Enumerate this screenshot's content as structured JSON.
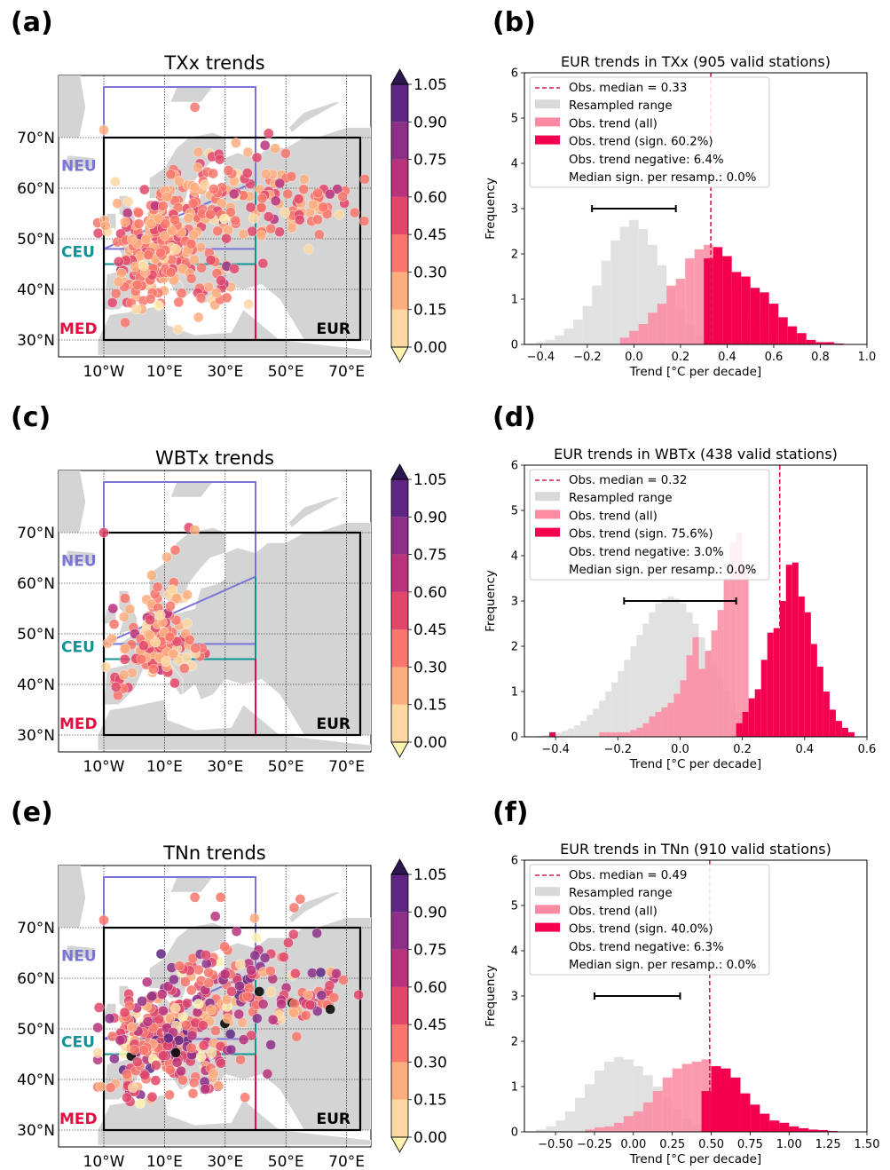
{
  "panel_labels": [
    "(a)",
    "(b)",
    "(c)",
    "(d)",
    "(e)",
    "(f)"
  ],
  "colors": {
    "cmap": [
      "#fcd8a2",
      "#fdae7f",
      "#f8766b",
      "#e2476a",
      "#b8327c",
      "#8c2f86",
      "#5e2682",
      "#2c1750"
    ],
    "neu": "#7b75d6",
    "ceu": "#0e9494",
    "med": "#e30e3f",
    "eur": "#000000",
    "land": "#d4d4d4",
    "resampled": "#d9d9d9",
    "obs_all": "#fb8aa2",
    "obs_sign": "#f5004f",
    "median_line": "#e3174a"
  },
  "chart_data": [
    {
      "type": "scatter-map",
      "title": "TXx trends",
      "region_labels": [
        "NEU",
        "CEU",
        "MED",
        "EUR"
      ],
      "lat_ticks": [
        "30°N",
        "40°N",
        "50°N",
        "60°N",
        "70°N"
      ],
      "lon_ticks": [
        "10°W",
        "10°E",
        "30°E",
        "50°E",
        "70°E"
      ],
      "colorbar_ticks": [
        "0.00",
        "0.15",
        "0.30",
        "0.45",
        "0.60",
        "0.75",
        "0.90",
        "1.05"
      ],
      "colorbar_extend": "both",
      "approx_station_mean_trend": 0.33
    },
    {
      "type": "bar",
      "title": "EUR trends in TXx  (905 valid stations)",
      "xlabel": "Trend [°C per decade]",
      "ylabel": "Frequency",
      "xlim": [
        -0.47,
        1.0
      ],
      "ylim": [
        0,
        6
      ],
      "xticks": [
        "−0.4",
        "−0.2",
        "0.0",
        "0.2",
        "0.4",
        "0.6",
        "0.8",
        "1.0"
      ],
      "yticks": [
        "0",
        "1",
        "2",
        "3",
        "4",
        "5",
        "6"
      ],
      "bin_width": 0.04,
      "legend": [
        "Obs. median = 0.33",
        "Resampled range",
        "Obs. trend (all)",
        "Obs. trend (sign. 60.2%)",
        "Obs. trend negative: 6.4%",
        "Median sign. per resamp.: 0.0%"
      ],
      "median": 0.33,
      "whisker": [
        -0.18,
        0.18,
        3.0
      ],
      "series": [
        {
          "name": "Resampled range",
          "bin_start": -0.46,
          "values": [
            0.02,
            0.05,
            0.1,
            0.2,
            0.35,
            0.55,
            0.85,
            1.3,
            1.85,
            2.3,
            2.6,
            2.75,
            2.55,
            2.2,
            1.75,
            1.25,
            0.8,
            0.45,
            0.2,
            0.1,
            0.05
          ]
        },
        {
          "name": "Obs. trend (all)",
          "bin_start": -0.06,
          "values": [
            0.15,
            0.3,
            0.45,
            0.7,
            0.9,
            1.3,
            1.45,
            1.9,
            2.1,
            2.2,
            1.9,
            1.5,
            1.2,
            0.9,
            0.6,
            0.4,
            0.2,
            0.15,
            0.1
          ]
        },
        {
          "name": "Obs. trend (sign. 60.2%)",
          "bin_start": 0.3,
          "values": [
            1.9,
            2.15,
            1.95,
            1.6,
            1.5,
            1.25,
            1.15,
            0.9,
            0.6,
            0.4,
            0.25,
            0.1,
            0.05,
            0.05,
            0.02
          ]
        }
      ]
    },
    {
      "type": "scatter-map",
      "title": "WBTx trends",
      "region_labels": [
        "NEU",
        "CEU",
        "MED",
        "EUR"
      ],
      "lat_ticks": [
        "30°N",
        "40°N",
        "50°N",
        "60°N",
        "70°N"
      ],
      "lon_ticks": [
        "10°W",
        "10°E",
        "30°E",
        "50°E",
        "70°E"
      ],
      "colorbar_ticks": [
        "0.00",
        "0.15",
        "0.30",
        "0.45",
        "0.60",
        "0.75",
        "0.90",
        "1.05"
      ],
      "colorbar_extend": "both",
      "approx_station_mean_trend": 0.32
    },
    {
      "type": "bar",
      "title": "EUR trends in WBTx  (438 valid stations)",
      "xlabel": "Trend [°C per decade]",
      "ylabel": "Frequency",
      "xlim": [
        -0.5,
        0.6
      ],
      "ylim": [
        0,
        6
      ],
      "xticks": [
        "−0.4",
        "−0.2",
        "0.0",
        "0.2",
        "0.4",
        "0.6"
      ],
      "yticks": [
        "0",
        "1",
        "2",
        "3",
        "4",
        "5",
        "6"
      ],
      "bin_width": 0.02,
      "legend": [
        "Obs. median = 0.32",
        "Resampled range",
        "Obs. trend (all)",
        "Obs. trend (sign. 75.6%)",
        "Obs. trend negative: 3.0%",
        "Median sign. per resamp.: 0.0%"
      ],
      "median": 0.32,
      "whisker": [
        -0.18,
        0.18,
        3.0
      ],
      "series": [
        {
          "name": "Resampled range",
          "bin_start": -0.46,
          "values": [
            0.02,
            0.04,
            0.06,
            0.09,
            0.13,
            0.18,
            0.25,
            0.35,
            0.48,
            0.62,
            0.8,
            1.0,
            1.2,
            1.45,
            1.7,
            2.0,
            2.25,
            2.5,
            2.75,
            2.95,
            3.05,
            3.1,
            3.05,
            2.95,
            2.75,
            2.5,
            2.2,
            1.9,
            1.6,
            1.3,
            1.0,
            0.75,
            0.55,
            0.38,
            0.25,
            0.15,
            0.08,
            0.04,
            0.02
          ]
        },
        {
          "name": "Obs. trend (all)",
          "bin_start": -0.26,
          "values": [
            0.1,
            0.1,
            0.1,
            0.1,
            0.1,
            0.15,
            0.2,
            0.3,
            0.45,
            0.55,
            0.65,
            0.75,
            0.95,
            1.25,
            1.8,
            2.2,
            1.5,
            1.9,
            2.35,
            2.8,
            3.5,
            4.3,
            4.5,
            3.7
          ]
        },
        {
          "name": "Obs. trend (sign. 75.6%)",
          "bin_start": -0.42,
          "values": [
            0.1,
            0,
            0,
            0,
            0,
            0,
            0,
            0,
            0,
            0,
            0,
            0,
            0,
            0,
            0,
            0,
            0,
            0,
            0,
            0,
            0,
            0,
            0,
            0,
            0,
            0,
            0,
            0,
            0,
            0,
            0.3,
            0.55,
            0.85,
            1.05,
            1.7,
            2.3,
            2.4,
            3.0,
            3.8,
            3.85,
            3.1,
            2.75,
            2.05,
            1.55,
            1.0,
            0.6,
            0.35,
            0.2,
            0.1
          ]
        }
      ]
    },
    {
      "type": "scatter-map",
      "title": "TNn trends",
      "region_labels": [
        "NEU",
        "CEU",
        "MED",
        "EUR"
      ],
      "lat_ticks": [
        "30°N",
        "40°N",
        "50°N",
        "60°N",
        "70°N"
      ],
      "lon_ticks": [
        "10°W",
        "10°E",
        "30°E",
        "50°E",
        "70°E"
      ],
      "colorbar_ticks": [
        "0.00",
        "0.15",
        "0.30",
        "0.45",
        "0.60",
        "0.75",
        "0.90",
        "1.05"
      ],
      "colorbar_extend": "both",
      "approx_station_mean_trend": 0.49
    },
    {
      "type": "bar",
      "title": "EUR trends in TNn  (910 valid stations)",
      "xlabel": "Trend [°C per decade]",
      "ylabel": "Frequency",
      "xlim": [
        -0.7,
        1.5
      ],
      "ylim": [
        0,
        6
      ],
      "xticks": [
        "−0.50",
        "−0.25",
        "0.00",
        "0.25",
        "0.50",
        "0.75",
        "1.00",
        "1.25",
        "1.50"
      ],
      "yticks": [
        "0",
        "1",
        "2",
        "3",
        "4",
        "5",
        "6"
      ],
      "bin_width": 0.0625,
      "legend": [
        "Obs. median = 0.49",
        "Resampled range",
        "Obs. trend (all)",
        "Obs. trend (sign. 40.0%)",
        "Obs. trend negative: 6.3%",
        "Median sign. per resamp.: 0.0%"
      ],
      "median": 0.49,
      "whisker": [
        -0.25,
        0.3,
        3.0
      ],
      "series": [
        {
          "name": "Resampled range",
          "bin_start": -0.625,
          "values": [
            0.05,
            0.12,
            0.25,
            0.45,
            0.75,
            1.05,
            1.35,
            1.55,
            1.65,
            1.6,
            1.45,
            1.25,
            1.0,
            0.75,
            0.5,
            0.3,
            0.16,
            0.08,
            0.03
          ]
        },
        {
          "name": "Obs. trend (all)",
          "bin_start": -0.3125,
          "values": [
            0.05,
            0.1,
            0.12,
            0.2,
            0.35,
            0.45,
            0.65,
            0.9,
            1.2,
            1.4,
            1.5,
            1.55,
            1.6,
            1.35,
            1.05,
            0.8,
            0.55,
            0.35,
            0.2,
            0.12,
            0.08,
            0.05,
            0.03
          ]
        },
        {
          "name": "Obs. trend (sign. 40.0%)",
          "bin_start": 0.4375,
          "values": [
            0.9,
            1.45,
            1.4,
            1.2,
            0.85,
            0.6,
            0.4,
            0.25,
            0.2,
            0.12,
            0.08,
            0.05,
            0.04,
            0.02
          ]
        }
      ]
    }
  ]
}
